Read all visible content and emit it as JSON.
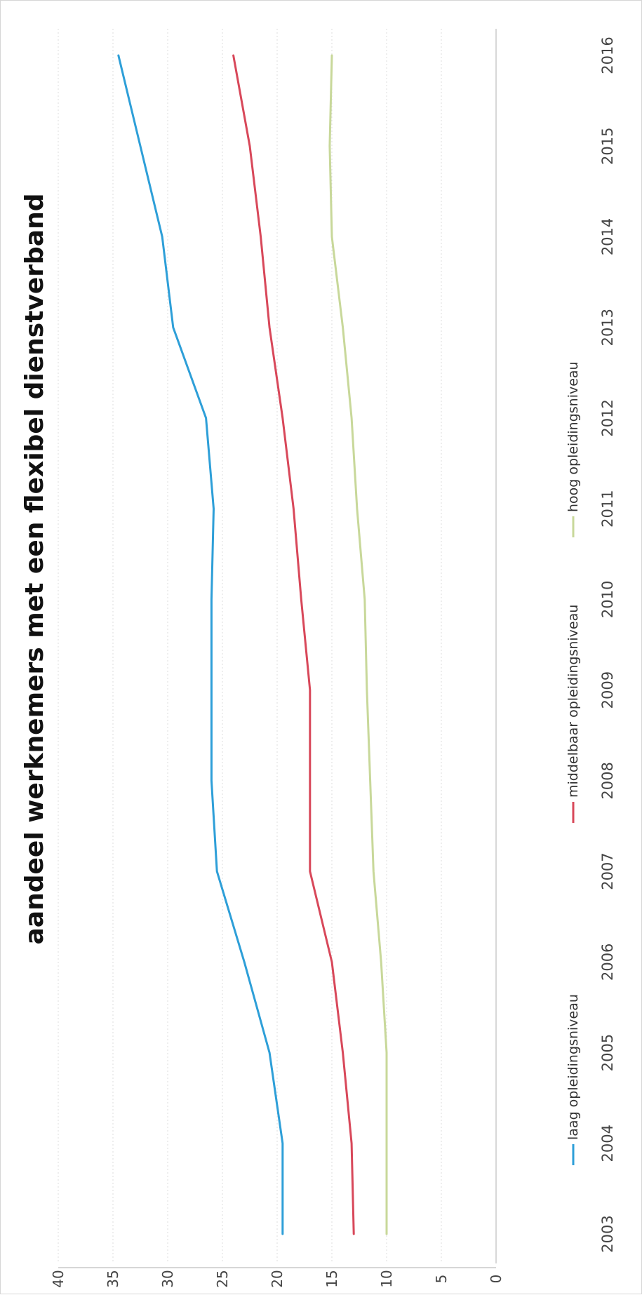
{
  "chart_data": {
    "type": "line",
    "title": "aandeel werknemers met een flexibel dienstverband",
    "orientation": "rotated 90° counter-clockwise",
    "x": [
      "2003",
      "2004",
      "2005",
      "2006",
      "2007",
      "2008",
      "2009",
      "2010",
      "2011",
      "2012",
      "2013",
      "2014",
      "2015",
      "2016"
    ],
    "ylim": [
      0,
      40
    ],
    "yticks": [
      "0",
      "5",
      "10",
      "15",
      "20",
      "25",
      "30",
      "35",
      "40"
    ],
    "grid": true,
    "legend_position": "bottom",
    "series": [
      {
        "name": "laag opleidingsniveau",
        "color": "#2e9fd8",
        "values": [
          19.5,
          19.5,
          20.7,
          23.0,
          25.5,
          26.0,
          26.0,
          26.0,
          25.8,
          26.5,
          29.5,
          30.5,
          32.5,
          34.5
        ]
      },
      {
        "name": "middelbaar opleidingsniveau",
        "color": "#d8485a",
        "values": [
          13.0,
          13.2,
          14.0,
          15.0,
          17.0,
          17.0,
          17.0,
          17.8,
          18.5,
          19.5,
          20.7,
          21.5,
          22.5,
          24.0
        ]
      },
      {
        "name": "hoog opleidingsniveau",
        "color": "#c8d89a",
        "values": [
          10.0,
          10.0,
          10.0,
          10.5,
          11.2,
          11.5,
          11.8,
          12.0,
          12.7,
          13.2,
          14.0,
          15.0,
          15.2,
          15.0
        ]
      }
    ]
  }
}
